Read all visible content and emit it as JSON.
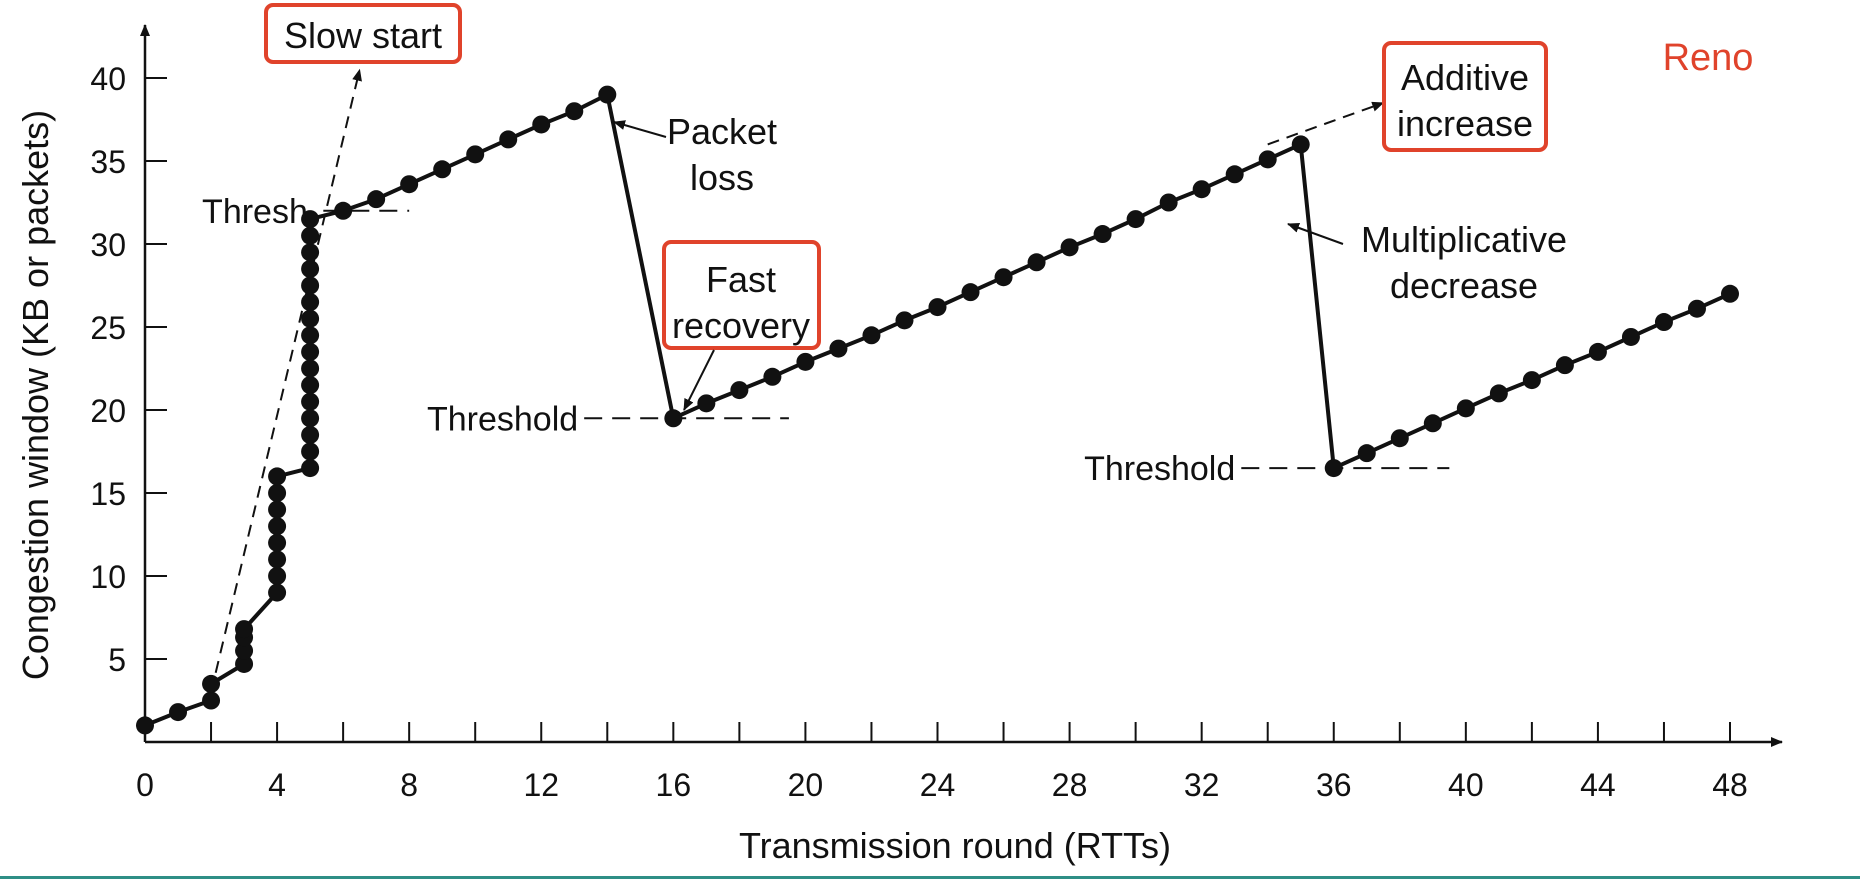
{
  "chart_data": {
    "type": "line",
    "xlabel": "Transmission round (RTTs)",
    "ylabel": "Congestion window (KB or packets)",
    "xlim": [
      0,
      48
    ],
    "ylim": [
      0,
      40
    ],
    "x_ticks": [
      "0",
      "4",
      "8",
      "12",
      "16",
      "20",
      "24",
      "28",
      "32",
      "36",
      "40",
      "44",
      "48"
    ],
    "y_ticks": [
      "5",
      "10",
      "15",
      "20",
      "25",
      "30",
      "35",
      "40"
    ],
    "grid": false,
    "corner_label": "Reno",
    "accent_color": "#e0432b",
    "series": [
      {
        "points": [
          [
            0,
            1
          ],
          [
            1,
            1.8
          ],
          [
            2,
            2.5
          ],
          [
            2,
            3.5
          ],
          [
            3,
            4.7
          ],
          [
            3,
            5.5
          ],
          [
            3,
            6.3
          ],
          [
            3,
            6.8
          ],
          [
            4,
            9
          ],
          [
            4,
            10
          ],
          [
            4,
            11
          ],
          [
            4,
            12
          ],
          [
            4,
            13
          ],
          [
            4,
            14
          ],
          [
            4,
            15
          ],
          [
            4,
            16
          ],
          [
            5,
            16.5
          ],
          [
            5,
            17.5
          ],
          [
            5,
            18.5
          ],
          [
            5,
            19.5
          ],
          [
            5,
            20.5
          ],
          [
            5,
            21.5
          ],
          [
            5,
            22.5
          ],
          [
            5,
            23.5
          ],
          [
            5,
            24.5
          ],
          [
            5,
            25.5
          ],
          [
            5,
            26.5
          ],
          [
            5,
            27.5
          ],
          [
            5,
            28.5
          ],
          [
            5,
            29.5
          ],
          [
            5,
            30.5
          ],
          [
            5,
            31.5
          ],
          [
            6,
            32
          ],
          [
            7,
            32.7
          ],
          [
            8,
            33.6
          ],
          [
            9,
            34.5
          ],
          [
            10,
            35.4
          ],
          [
            11,
            36.3
          ],
          [
            12,
            37.2
          ],
          [
            13,
            38
          ],
          [
            14,
            39
          ],
          [
            16,
            19.5
          ],
          [
            17,
            20.4
          ],
          [
            18,
            21.2
          ],
          [
            19,
            22
          ],
          [
            20,
            22.9
          ],
          [
            21,
            23.7
          ],
          [
            22,
            24.5
          ],
          [
            23,
            25.4
          ],
          [
            24,
            26.2
          ],
          [
            25,
            27.1
          ],
          [
            26,
            28
          ],
          [
            27,
            28.9
          ],
          [
            28,
            29.8
          ],
          [
            29,
            30.6
          ],
          [
            30,
            31.5
          ],
          [
            31,
            32.5
          ],
          [
            32,
            33.3
          ],
          [
            33,
            34.2
          ],
          [
            34,
            35.1
          ],
          [
            35,
            36
          ],
          [
            36,
            16.5
          ],
          [
            37,
            17.4
          ],
          [
            38,
            18.3
          ],
          [
            39,
            19.2
          ],
          [
            40,
            20.1
          ],
          [
            41,
            21
          ],
          [
            42,
            21.8
          ],
          [
            43,
            22.7
          ],
          [
            44,
            23.5
          ],
          [
            45,
            24.4
          ],
          [
            46,
            25.3
          ],
          [
            47,
            26.1
          ],
          [
            48,
            27
          ]
        ]
      }
    ],
    "threshold_lines": [
      {
        "label": "Thresh.",
        "y": 32,
        "x_from": 5.4,
        "x_to": 8
      },
      {
        "label": "Threshold",
        "y": 19.5,
        "x_from": 13.3,
        "x_to": 19.5
      },
      {
        "label": "Threshold",
        "y": 16.5,
        "x_from": 33.2,
        "x_to": 39.5
      }
    ],
    "dashed_extensions": [
      {
        "from": [
          2,
          3
        ],
        "to": [
          6.5,
          40.5
        ]
      },
      {
        "from": [
          34,
          36
        ],
        "to": [
          37.5,
          38.5
        ]
      }
    ],
    "annotations": {
      "slow_start": "Slow start",
      "packet_loss": [
        "Packet",
        "loss"
      ],
      "fast_recovery": [
        "Fast",
        "recovery"
      ],
      "additive_increase": [
        "Additive",
        "increase"
      ],
      "multiplicative_decrease": [
        "Multiplicative",
        "decrease"
      ]
    }
  }
}
